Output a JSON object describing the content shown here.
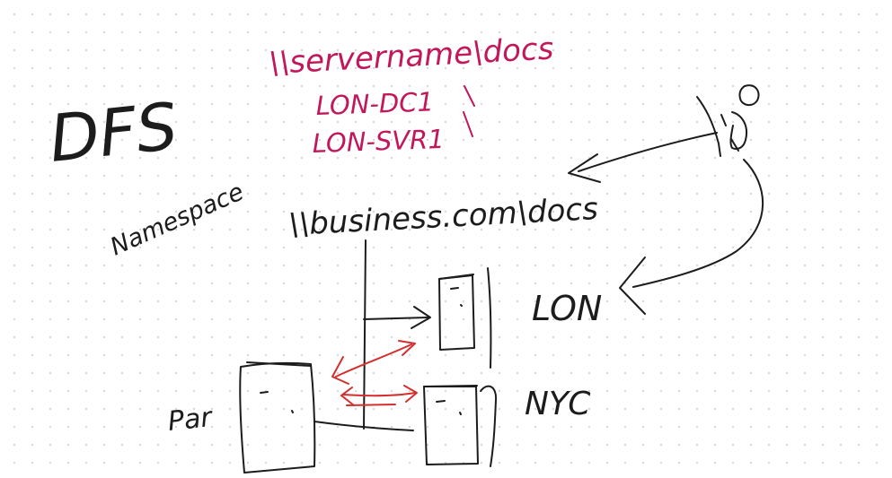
{
  "title": "DFS",
  "namespace_label": "Namespace",
  "unc_paths": {
    "server_path": "\\\\servername\\docs",
    "server_1": "LON-DC1",
    "server_2": "LON-SVR1",
    "namespace_path": "\\\\business.com\\docs"
  },
  "sites": {
    "site_1": "LON",
    "site_2": "NYC",
    "site_3": "Par"
  },
  "colors": {
    "ink": "#1c1c1c",
    "magenta": "#c2185b",
    "red": "#d32f2f"
  }
}
